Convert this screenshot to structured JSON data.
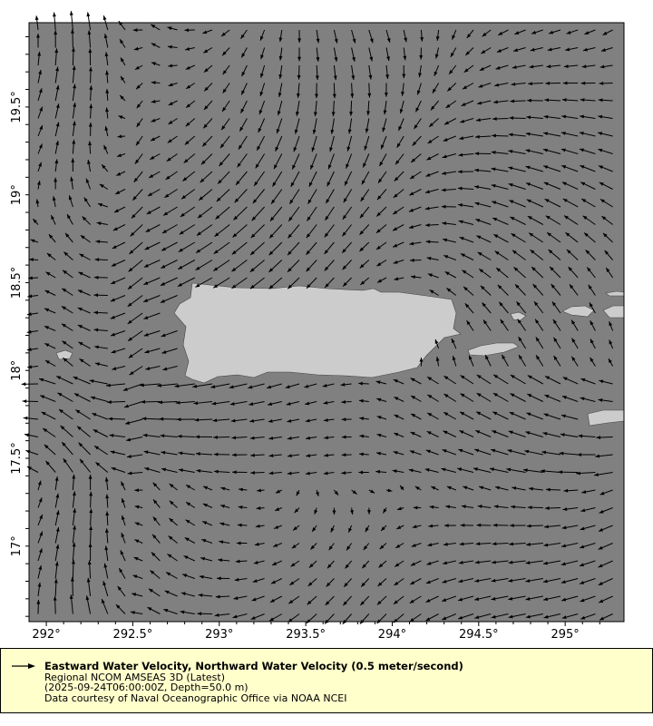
{
  "map": {
    "x_axis": {
      "ticks": [
        "292°",
        "292.5°",
        "293°",
        "293.5°",
        "294°",
        "294.5°",
        "295°"
      ],
      "values": [
        292,
        292.5,
        293,
        293.5,
        294,
        294.5,
        295
      ],
      "range": [
        291.9,
        295.34
      ]
    },
    "y_axis": {
      "ticks": [
        "17°",
        "17.5°",
        "18°",
        "18.5°",
        "19°",
        "19.5°"
      ],
      "values": [
        17,
        17.5,
        18,
        18.5,
        19,
        19.5
      ],
      "range": [
        16.57,
        19.98
      ]
    },
    "colors": {
      "ocean": "#808080",
      "land": "#cccccc",
      "vectors": "#000000"
    }
  },
  "legend": {
    "title": "Eastward Water Velocity, Northward Water Velocity (0.5 meter/second)",
    "dataset": "Regional NCOM AMSEAS 3D (Latest)",
    "time_depth": "(2025-09-24T06:00:00Z, Depth=50.0 m)",
    "credit": "Data courtesy of Naval Oceanographic Office via NOAA NCEI",
    "icon": "arrow-right-icon"
  }
}
